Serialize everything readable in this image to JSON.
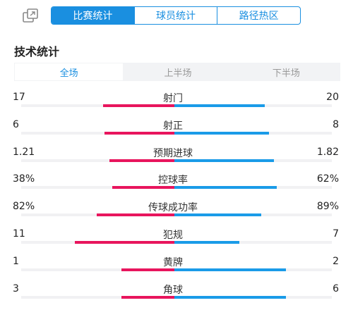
{
  "tabs": [
    {
      "label": "比赛统计",
      "active": true
    },
    {
      "label": "球员统计",
      "active": false
    },
    {
      "label": "路径热区",
      "active": false
    }
  ],
  "section_title": "技术统计",
  "subtabs": [
    {
      "label": "全场",
      "active": true
    },
    {
      "label": "上半场",
      "active": false
    },
    {
      "label": "下半场",
      "active": false
    }
  ],
  "colors": {
    "accent": "#1a8fe0",
    "home": "#e8155d",
    "away": "#1a9be8"
  },
  "stats": [
    {
      "label": "射门",
      "home": "17",
      "away": "20",
      "home_share": 0.46,
      "away_share": 0.58
    },
    {
      "label": "射正",
      "home": "6",
      "away": "8",
      "home_share": 0.45,
      "away_share": 0.61
    },
    {
      "label": "预期进球",
      "home": "1.21",
      "away": "1.82",
      "home_share": 0.42,
      "away_share": 0.64
    },
    {
      "label": "控球率",
      "home": "38%",
      "away": "62%",
      "home_share": 0.4,
      "away_share": 0.66
    },
    {
      "label": "传球成功率",
      "home": "82%",
      "away": "89%",
      "home_share": 0.5,
      "away_share": 0.56
    },
    {
      "label": "犯规",
      "home": "11",
      "away": "7",
      "home_share": 0.64,
      "away_share": 0.42
    },
    {
      "label": "黄牌",
      "home": "1",
      "away": "2",
      "home_share": 0.34,
      "away_share": 0.72
    },
    {
      "label": "角球",
      "home": "3",
      "away": "6",
      "home_share": 0.34,
      "away_share": 0.72
    }
  ]
}
